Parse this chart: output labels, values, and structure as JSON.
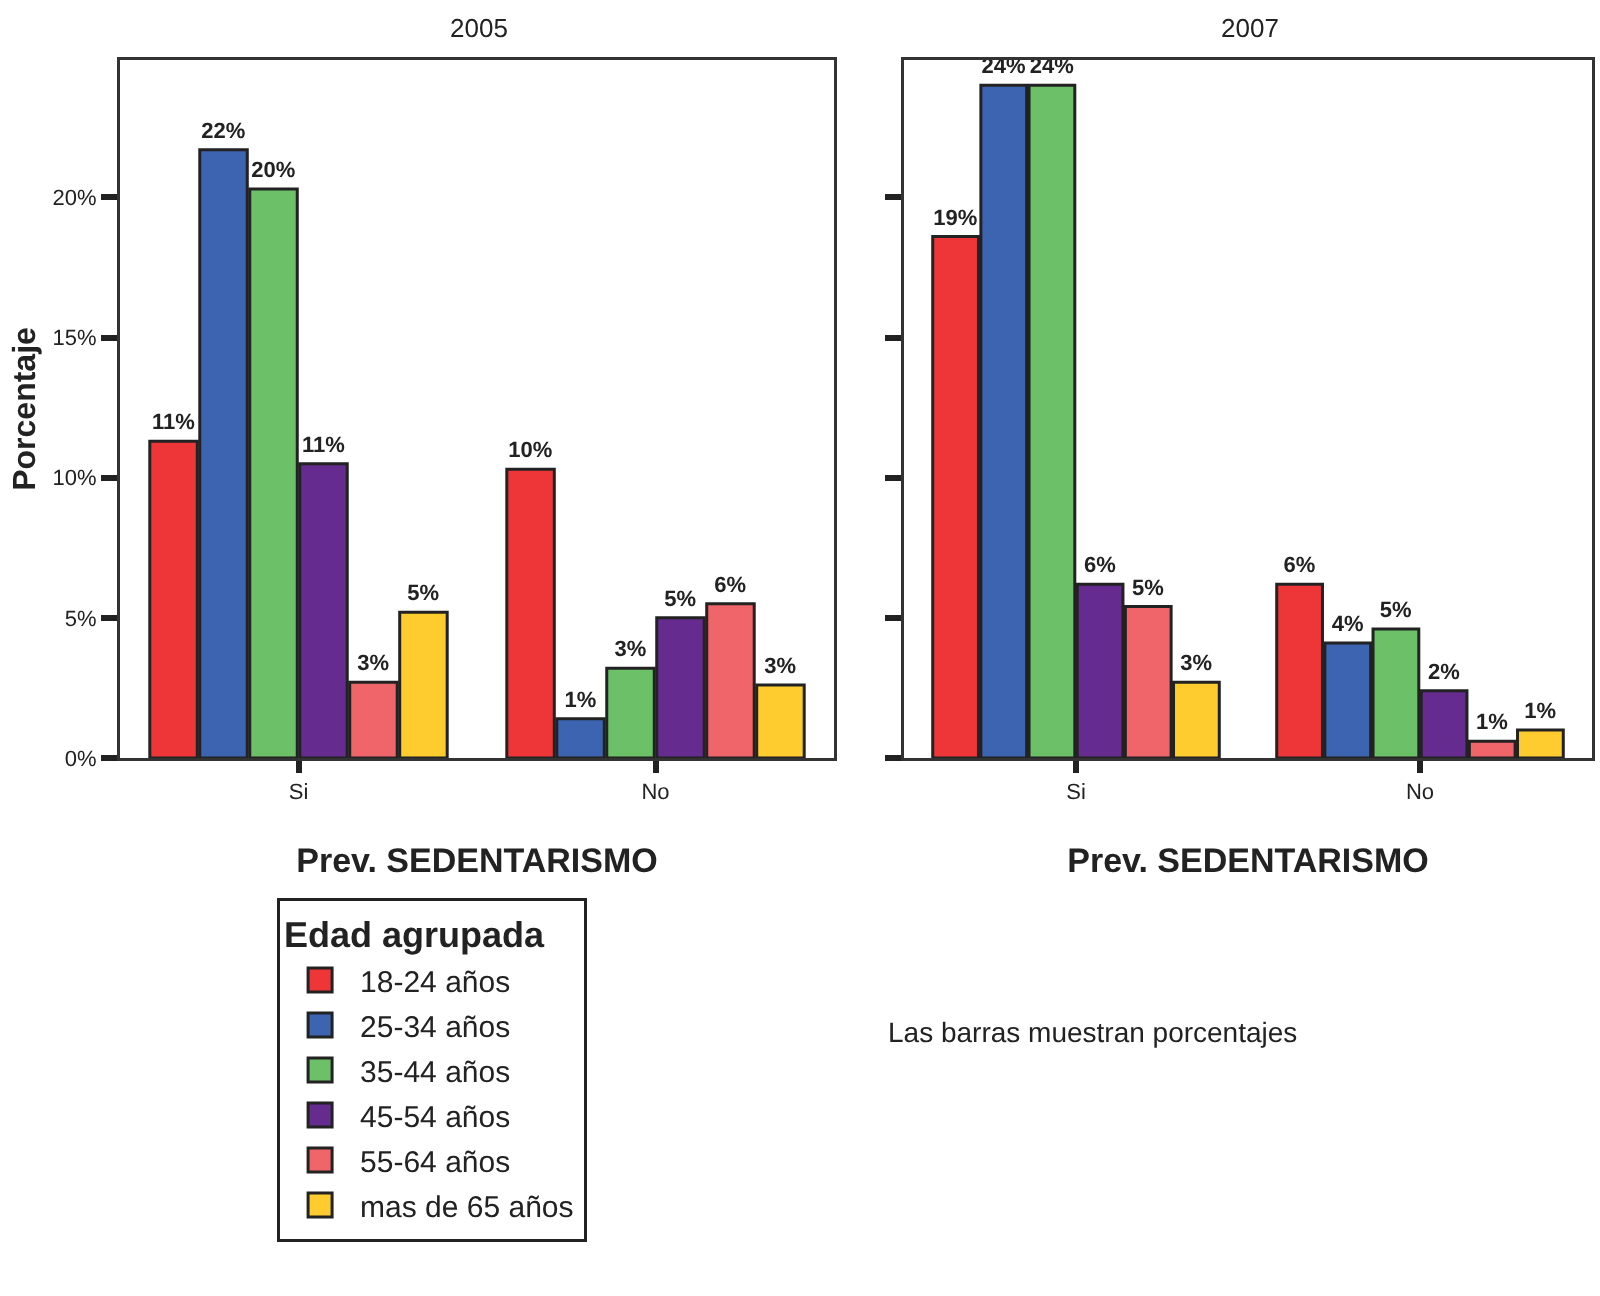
{
  "chart_data": [
    {
      "type": "bar",
      "title": "2005",
      "xlabel": "Prev. SEDENTARISMO",
      "ylabel": "Porcentaje",
      "legend_title": "Edad agrupada",
      "legend": "bottom left",
      "grid": false,
      "categories": [
        "Si",
        "No"
      ],
      "ylim": [
        0,
        24.9
      ],
      "yticks": [
        {
          "value": 0,
          "label": "0%"
        },
        {
          "value": 5,
          "label": "5%"
        },
        {
          "value": 10,
          "label": "10%"
        },
        {
          "value": 15,
          "label": "15%"
        },
        {
          "value": 20,
          "label": "20%"
        }
      ],
      "series": [
        {
          "name": "18-24 años",
          "color": "#ee3638",
          "values": [
            11.3,
            10.3
          ],
          "value_labels": [
            "11%",
            "10%"
          ]
        },
        {
          "name": "25-34 años",
          "color": "#3c64b0",
          "values": [
            21.7,
            1.4
          ],
          "value_labels": [
            "22%",
            "1%"
          ]
        },
        {
          "name": "35-44 años",
          "color": "#6cc067",
          "values": [
            20.3,
            3.2
          ],
          "value_labels": [
            "20%",
            "3%"
          ]
        },
        {
          "name": "45-54 años",
          "color": "#652b8f",
          "values": [
            10.5,
            5.0
          ],
          "value_labels": [
            "11%",
            "5%"
          ]
        },
        {
          "name": "55-64 años",
          "color": "#f0656a",
          "values": [
            2.7,
            5.5
          ],
          "value_labels": [
            "3%",
            "6%"
          ]
        },
        {
          "name": "mas de 65 años",
          "color": "#fecc2f",
          "values": [
            5.2,
            2.6
          ],
          "value_labels": [
            "5%",
            "3%"
          ]
        }
      ]
    },
    {
      "type": "bar",
      "title": "2007",
      "xlabel": "Prev. SEDENTARISMO",
      "legend": false,
      "grid": false,
      "tick_labels": "x",
      "categories": [
        "Si",
        "No"
      ],
      "ylim": [
        0,
        24.9
      ],
      "yticks": [
        {
          "value": 0,
          "label": null
        },
        {
          "value": 5,
          "label": null
        },
        {
          "value": 10,
          "label": null
        },
        {
          "value": 15,
          "label": null
        },
        {
          "value": 20,
          "label": null
        }
      ],
      "annotations": [
        "Las barras muestran porcentajes"
      ],
      "series": [
        {
          "color": "#ee3638",
          "values": [
            18.6,
            6.2
          ],
          "value_labels": [
            "19%",
            "6%"
          ]
        },
        {
          "color": "#3c64b0",
          "values": [
            24.0,
            4.1
          ],
          "value_labels": [
            "24%",
            "4%"
          ]
        },
        {
          "color": "#6cc067",
          "values": [
            24.0,
            4.6
          ],
          "value_labels": [
            "24%",
            "5%"
          ]
        },
        {
          "color": "#652b8f",
          "values": [
            6.2,
            2.4
          ],
          "value_labels": [
            "6%",
            "2%"
          ]
        },
        {
          "color": "#f0656a",
          "values": [
            5.4,
            0.6
          ],
          "value_labels": [
            "5%",
            "1%"
          ]
        },
        {
          "color": "#fecc2f",
          "values": [
            2.7,
            1.0
          ],
          "value_labels": [
            "3%",
            "1%"
          ]
        }
      ]
    }
  ]
}
